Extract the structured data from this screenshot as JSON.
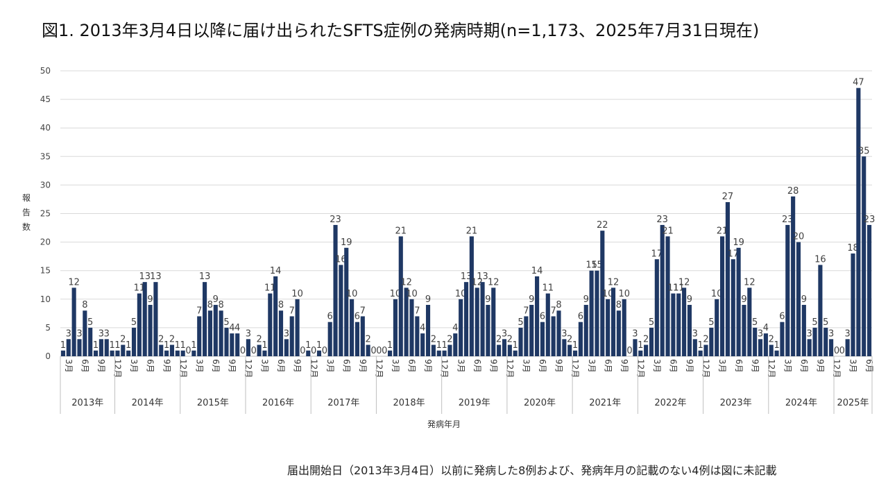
{
  "title": "図1. 2013年3月4日以降に届け出られたSFTS症例の発病時期(n=1,173、2025年7月31日現在)",
  "footnote": "届出開始日（2013年3月4日）以前に発病した8例および、発病年月の記載のない4例は図に未記載",
  "chart_data": {
    "type": "bar",
    "ylabel": "報告数",
    "xlabel": "発病年月",
    "ylim": [
      0,
      50
    ],
    "yticks": [
      0,
      5,
      10,
      15,
      20,
      25,
      30,
      35,
      40,
      45,
      50
    ],
    "grid": true,
    "bar_color": "#1f3864",
    "month_tick_labels": [
      "3月",
      "6月",
      "9月",
      "12月"
    ],
    "years": [
      {
        "label": "2013年",
        "start_month": 3,
        "values": [
          1,
          3,
          12,
          3,
          8,
          5,
          1,
          3,
          3,
          1
        ]
      },
      {
        "label": "2014年",
        "start_month": 1,
        "values": [
          1,
          2,
          1,
          5,
          11,
          13,
          9,
          13,
          2,
          1,
          2,
          1
        ]
      },
      {
        "label": "2015年",
        "start_month": 1,
        "values": [
          1,
          0,
          1,
          7,
          13,
          8,
          9,
          8,
          5,
          4,
          4,
          0
        ]
      },
      {
        "label": "2016年",
        "start_month": 1,
        "values": [
          3,
          0,
          2,
          1,
          11,
          14,
          8,
          3,
          7,
          10,
          0,
          1
        ]
      },
      {
        "label": "2017年",
        "start_month": 1,
        "values": [
          0,
          1,
          0,
          6,
          23,
          16,
          19,
          10,
          6,
          7,
          2,
          0
        ]
      },
      {
        "label": "2018年",
        "start_month": 1,
        "values": [
          0,
          0,
          1,
          10,
          21,
          12,
          10,
          7,
          4,
          9,
          2,
          1
        ]
      },
      {
        "label": "2019年",
        "start_month": 1,
        "values": [
          1,
          2,
          4,
          10,
          13,
          21,
          12,
          13,
          9,
          12,
          2,
          3
        ]
      },
      {
        "label": "2020年",
        "start_month": 1,
        "values": [
          2,
          1,
          5,
          7,
          9,
          14,
          6,
          11,
          7,
          8,
          3,
          2
        ]
      },
      {
        "label": "2021年",
        "start_month": 1,
        "values": [
          1,
          6,
          9,
          15,
          15,
          22,
          10,
          12,
          8,
          10,
          0,
          3
        ]
      },
      {
        "label": "2022年",
        "start_month": 1,
        "values": [
          1,
          2,
          5,
          17,
          23,
          21,
          11,
          11,
          12,
          9,
          3,
          1
        ]
      },
      {
        "label": "2023年",
        "start_month": 1,
        "values": [
          2,
          5,
          10,
          21,
          27,
          17,
          19,
          9,
          12,
          5,
          3,
          4
        ]
      },
      {
        "label": "2024年",
        "start_month": 1,
        "values": [
          2,
          1,
          6,
          23,
          28,
          20,
          9,
          3,
          5,
          16,
          5,
          3
        ]
      },
      {
        "label": "2025年",
        "start_month": 1,
        "values": [
          0,
          0,
          3,
          18,
          47,
          35,
          23
        ]
      }
    ]
  }
}
